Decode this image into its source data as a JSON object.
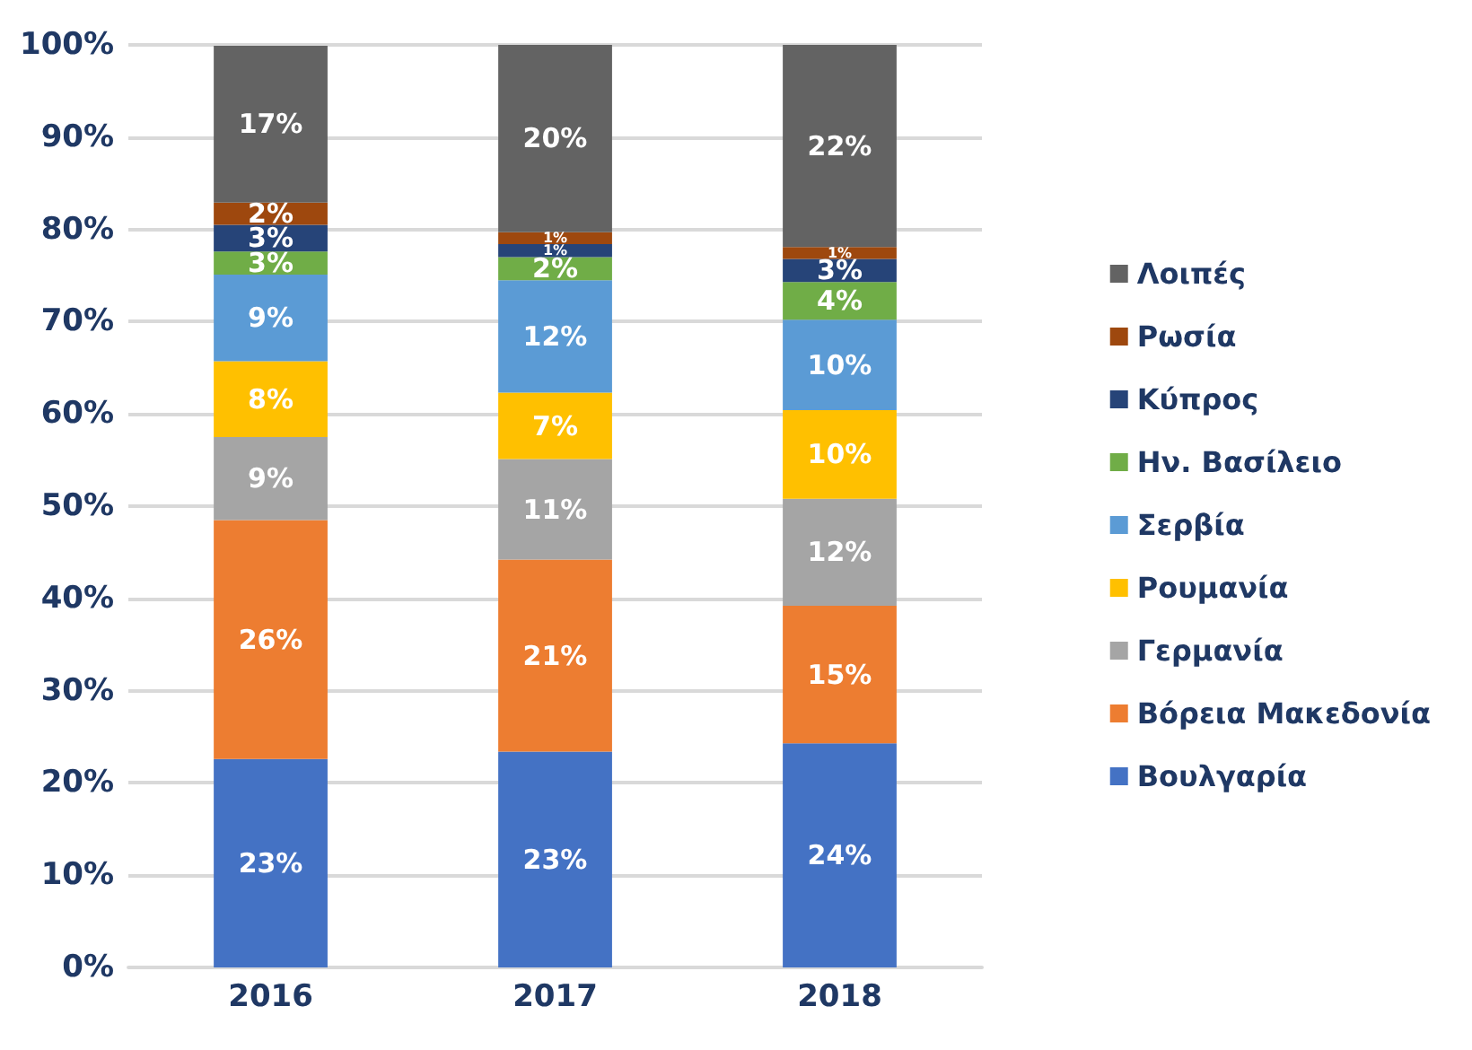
{
  "chart_data": {
    "type": "bar",
    "stacked": true,
    "categories": [
      "2016",
      "2017",
      "2018"
    ],
    "series": [
      {
        "name": "Βουλγαρία",
        "color": "#4472c4",
        "values": [
          22.6,
          23.4,
          24.3
        ],
        "value_labels": [
          "23%",
          "23%",
          "24%"
        ]
      },
      {
        "name": "Βόρεια Μακεδονία",
        "color": "#ed7d31",
        "values": [
          25.9,
          20.8,
          14.9
        ],
        "value_labels": [
          "26%",
          "21%",
          "15%"
        ]
      },
      {
        "name": "Γερμανία",
        "color": "#a5a5a5",
        "values": [
          9.0,
          10.9,
          11.6
        ],
        "value_labels": [
          "9%",
          "11%",
          "12%"
        ]
      },
      {
        "name": "Ρουμανία",
        "color": "#ffc000",
        "values": [
          8.2,
          7.2,
          9.6
        ],
        "value_labels": [
          "8%",
          "7%",
          "10%"
        ]
      },
      {
        "name": "Σερβία",
        "color": "#5b9bd5",
        "values": [
          9.4,
          12.2,
          9.8
        ],
        "value_labels": [
          "9%",
          "12%",
          "10%"
        ]
      },
      {
        "name": "Ην. Βασίλειο",
        "color": "#70ad47",
        "values": [
          2.5,
          2.5,
          4.1
        ],
        "value_labels": [
          "3%",
          "2%",
          "4%"
        ]
      },
      {
        "name": "Κύπρος",
        "color": "#264478",
        "values": [
          2.9,
          1.4,
          2.5
        ],
        "value_labels": [
          "3%",
          "1%",
          "3%"
        ]
      },
      {
        "name": "Ρωσία",
        "color": "#9e480e",
        "values": [
          2.4,
          1.3,
          1.3
        ],
        "value_labels": [
          "2%",
          "1%",
          "1%"
        ]
      },
      {
        "name": "Λοιπές",
        "color": "#636363",
        "values": [
          17.0,
          20.3,
          21.9
        ],
        "value_labels": [
          "17%",
          "20%",
          "22%"
        ]
      }
    ],
    "ylim": [
      0,
      100
    ],
    "yticks": [
      {
        "value": 0,
        "label": "0%"
      },
      {
        "value": 10,
        "label": "10%"
      },
      {
        "value": 20,
        "label": "20%"
      },
      {
        "value": 30,
        "label": "30%"
      },
      {
        "value": 40,
        "label": "40%"
      },
      {
        "value": 50,
        "label": "50%"
      },
      {
        "value": 60,
        "label": "60%"
      },
      {
        "value": 70,
        "label": "70%"
      },
      {
        "value": 80,
        "label": "80%"
      },
      {
        "value": 90,
        "label": "90%"
      },
      {
        "value": 100,
        "label": "100%"
      }
    ],
    "grid": "y",
    "legend": "right"
  }
}
